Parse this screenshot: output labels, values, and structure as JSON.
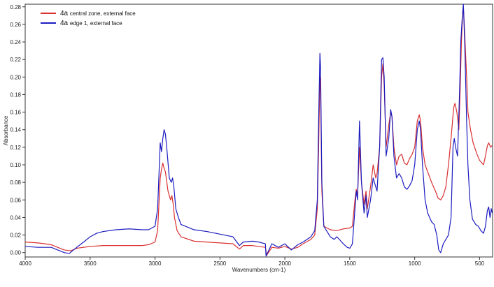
{
  "chart_data": {
    "type": "line",
    "title": "",
    "xlabel": "Wavenumbers (cm-1)",
    "ylabel": "Absorbance",
    "xlim": [
      4000,
      400
    ],
    "ylim": [
      -0.005,
      0.283
    ],
    "x_reversed": true,
    "grid": false,
    "legend_position": "top-left",
    "x_ticks": [
      {
        "value": 4000,
        "label": "4000"
      },
      {
        "value": 3500,
        "label": "3500"
      },
      {
        "value": 3000,
        "label": "3000"
      },
      {
        "value": 2500,
        "label": "2500"
      },
      {
        "value": 2000,
        "label": "2000"
      },
      {
        "value": 1500,
        "label": "1500"
      },
      {
        "value": 1000,
        "label": "1000"
      },
      {
        "value": 500,
        "label": "500"
      }
    ],
    "y_ticks": [
      {
        "value": 0.0,
        "label": "0.00"
      },
      {
        "value": 0.02,
        "label": "0.02"
      },
      {
        "value": 0.04,
        "label": "0.04"
      },
      {
        "value": 0.06,
        "label": "0.06"
      },
      {
        "value": 0.08,
        "label": "0.08"
      },
      {
        "value": 0.1,
        "label": "0.10"
      },
      {
        "value": 0.12,
        "label": "0.12"
      },
      {
        "value": 0.14,
        "label": "0.14"
      },
      {
        "value": 0.16,
        "label": "0.16"
      },
      {
        "value": 0.18,
        "label": "0.18"
      },
      {
        "value": 0.2,
        "label": "0.20"
      },
      {
        "value": 0.22,
        "label": "0.22"
      },
      {
        "value": 0.24,
        "label": "0.24"
      },
      {
        "value": 0.26,
        "label": "0.26"
      },
      {
        "value": 0.28,
        "label": "0.28"
      }
    ],
    "series": [
      {
        "name_prefix": "4a",
        "name": "central zone, external face",
        "color": "#d93030",
        "points": [
          [
            4000,
            0.012
          ],
          [
            3900,
            0.011
          ],
          [
            3800,
            0.009
          ],
          [
            3700,
            0.003
          ],
          [
            3650,
            0.002
          ],
          [
            3600,
            0.005
          ],
          [
            3500,
            0.007
          ],
          [
            3400,
            0.008
          ],
          [
            3300,
            0.008
          ],
          [
            3200,
            0.008
          ],
          [
            3100,
            0.008
          ],
          [
            3050,
            0.009
          ],
          [
            3000,
            0.012
          ],
          [
            2980,
            0.025
          ],
          [
            2960,
            0.085
          ],
          [
            2950,
            0.095
          ],
          [
            2940,
            0.102
          ],
          [
            2930,
            0.096
          ],
          [
            2920,
            0.092
          ],
          [
            2900,
            0.07
          ],
          [
            2880,
            0.06
          ],
          [
            2870,
            0.065
          ],
          [
            2860,
            0.055
          ],
          [
            2850,
            0.04
          ],
          [
            2830,
            0.025
          ],
          [
            2800,
            0.018
          ],
          [
            2700,
            0.013
          ],
          [
            2600,
            0.012
          ],
          [
            2500,
            0.011
          ],
          [
            2400,
            0.01
          ],
          [
            2350,
            0.004
          ],
          [
            2320,
            0.008
          ],
          [
            2250,
            0.008
          ],
          [
            2150,
            0.006
          ],
          [
            2140,
            -0.003
          ],
          [
            2100,
            0.006
          ],
          [
            2050,
            0.005
          ],
          [
            2000,
            0.007
          ],
          [
            1950,
            0.004
          ],
          [
            1900,
            0.006
          ],
          [
            1860,
            0.01
          ],
          [
            1800,
            0.015
          ],
          [
            1770,
            0.02
          ],
          [
            1750,
            0.05
          ],
          [
            1740,
            0.12
          ],
          [
            1730,
            0.2
          ],
          [
            1725,
            0.185
          ],
          [
            1715,
            0.07
          ],
          [
            1700,
            0.03
          ],
          [
            1650,
            0.026
          ],
          [
            1600,
            0.025
          ],
          [
            1550,
            0.027
          ],
          [
            1500,
            0.028
          ],
          [
            1480,
            0.03
          ],
          [
            1460,
            0.06
          ],
          [
            1450,
            0.072
          ],
          [
            1440,
            0.065
          ],
          [
            1425,
            0.12
          ],
          [
            1410,
            0.08
          ],
          [
            1390,
            0.055
          ],
          [
            1375,
            0.07
          ],
          [
            1365,
            0.05
          ],
          [
            1340,
            0.075
          ],
          [
            1320,
            0.1
          ],
          [
            1300,
            0.085
          ],
          [
            1290,
            0.09
          ],
          [
            1270,
            0.12
          ],
          [
            1255,
            0.2
          ],
          [
            1245,
            0.215
          ],
          [
            1235,
            0.19
          ],
          [
            1220,
            0.12
          ],
          [
            1200,
            0.145
          ],
          [
            1185,
            0.16
          ],
          [
            1175,
            0.155
          ],
          [
            1160,
            0.12
          ],
          [
            1140,
            0.1
          ],
          [
            1120,
            0.11
          ],
          [
            1100,
            0.112
          ],
          [
            1080,
            0.102
          ],
          [
            1060,
            0.1
          ],
          [
            1040,
            0.107
          ],
          [
            1020,
            0.112
          ],
          [
            1000,
            0.12
          ],
          [
            980,
            0.15
          ],
          [
            965,
            0.157
          ],
          [
            955,
            0.15
          ],
          [
            940,
            0.12
          ],
          [
            920,
            0.1
          ],
          [
            900,
            0.092
          ],
          [
            870,
            0.08
          ],
          [
            840,
            0.07
          ],
          [
            820,
            0.062
          ],
          [
            800,
            0.06
          ],
          [
            780,
            0.065
          ],
          [
            760,
            0.075
          ],
          [
            740,
            0.1
          ],
          [
            720,
            0.13
          ],
          [
            700,
            0.165
          ],
          [
            690,
            0.17
          ],
          [
            675,
            0.16
          ],
          [
            660,
            0.14
          ],
          [
            650,
            0.185
          ],
          [
            640,
            0.24
          ],
          [
            630,
            0.275
          ],
          [
            625,
            0.28
          ],
          [
            615,
            0.25
          ],
          [
            600,
            0.2
          ],
          [
            590,
            0.16
          ],
          [
            570,
            0.14
          ],
          [
            550,
            0.125
          ],
          [
            520,
            0.112
          ],
          [
            500,
            0.105
          ],
          [
            470,
            0.1
          ],
          [
            455,
            0.11
          ],
          [
            440,
            0.122
          ],
          [
            430,
            0.125
          ],
          [
            415,
            0.12
          ],
          [
            405,
            0.122
          ]
        ]
      },
      {
        "name_prefix": "4a",
        "name": "edge 1, external face",
        "color": "#1c1cc0",
        "points": [
          [
            4000,
            0.007
          ],
          [
            3900,
            0.006
          ],
          [
            3800,
            0.006
          ],
          [
            3700,
            0.0
          ],
          [
            3660,
            -0.001
          ],
          [
            3620,
            0.004
          ],
          [
            3550,
            0.012
          ],
          [
            3500,
            0.018
          ],
          [
            3450,
            0.022
          ],
          [
            3400,
            0.024
          ],
          [
            3300,
            0.026
          ],
          [
            3200,
            0.027
          ],
          [
            3100,
            0.026
          ],
          [
            3050,
            0.026
          ],
          [
            3000,
            0.03
          ],
          [
            2980,
            0.05
          ],
          [
            2960,
            0.125
          ],
          [
            2950,
            0.115
          ],
          [
            2940,
            0.13
          ],
          [
            2930,
            0.14
          ],
          [
            2920,
            0.135
          ],
          [
            2910,
            0.12
          ],
          [
            2890,
            0.085
          ],
          [
            2875,
            0.08
          ],
          [
            2865,
            0.085
          ],
          [
            2855,
            0.075
          ],
          [
            2840,
            0.05
          ],
          [
            2820,
            0.04
          ],
          [
            2800,
            0.032
          ],
          [
            2700,
            0.026
          ],
          [
            2600,
            0.024
          ],
          [
            2500,
            0.021
          ],
          [
            2400,
            0.018
          ],
          [
            2350,
            0.008
          ],
          [
            2320,
            0.012
          ],
          [
            2250,
            0.013
          ],
          [
            2200,
            0.012
          ],
          [
            2150,
            0.01
          ],
          [
            2145,
            -0.004
          ],
          [
            2100,
            0.01
          ],
          [
            2050,
            0.006
          ],
          [
            2000,
            0.01
          ],
          [
            1950,
            0.003
          ],
          [
            1900,
            0.009
          ],
          [
            1860,
            0.012
          ],
          [
            1800,
            0.018
          ],
          [
            1770,
            0.025
          ],
          [
            1750,
            0.06
          ],
          [
            1740,
            0.15
          ],
          [
            1730,
            0.227
          ],
          [
            1725,
            0.21
          ],
          [
            1715,
            0.08
          ],
          [
            1700,
            0.03
          ],
          [
            1650,
            0.018
          ],
          [
            1620,
            0.015
          ],
          [
            1600,
            0.018
          ],
          [
            1580,
            0.015
          ],
          [
            1550,
            0.01
          ],
          [
            1520,
            0.006
          ],
          [
            1500,
            0.005
          ],
          [
            1480,
            0.01
          ],
          [
            1460,
            0.05
          ],
          [
            1450,
            0.07
          ],
          [
            1440,
            0.06
          ],
          [
            1425,
            0.15
          ],
          [
            1410,
            0.08
          ],
          [
            1390,
            0.045
          ],
          [
            1375,
            0.065
          ],
          [
            1365,
            0.04
          ],
          [
            1340,
            0.06
          ],
          [
            1320,
            0.085
          ],
          [
            1300,
            0.075
          ],
          [
            1290,
            0.07
          ],
          [
            1270,
            0.12
          ],
          [
            1255,
            0.22
          ],
          [
            1245,
            0.222
          ],
          [
            1235,
            0.2
          ],
          [
            1220,
            0.11
          ],
          [
            1200,
            0.13
          ],
          [
            1185,
            0.163
          ],
          [
            1175,
            0.155
          ],
          [
            1160,
            0.11
          ],
          [
            1140,
            0.085
          ],
          [
            1120,
            0.09
          ],
          [
            1100,
            0.085
          ],
          [
            1080,
            0.075
          ],
          [
            1060,
            0.072
          ],
          [
            1040,
            0.076
          ],
          [
            1020,
            0.082
          ],
          [
            1000,
            0.1
          ],
          [
            980,
            0.14
          ],
          [
            965,
            0.15
          ],
          [
            955,
            0.14
          ],
          [
            940,
            0.1
          ],
          [
            920,
            0.06
          ],
          [
            900,
            0.045
          ],
          [
            870,
            0.035
          ],
          [
            850,
            0.032
          ],
          [
            830,
            0.02
          ],
          [
            815,
            0.003
          ],
          [
            800,
            0.0
          ],
          [
            780,
            0.01
          ],
          [
            760,
            0.015
          ],
          [
            740,
            0.02
          ],
          [
            720,
            0.04
          ],
          [
            705,
            0.12
          ],
          [
            695,
            0.13
          ],
          [
            685,
            0.12
          ],
          [
            670,
            0.11
          ],
          [
            655,
            0.18
          ],
          [
            645,
            0.24
          ],
          [
            635,
            0.265
          ],
          [
            625,
            0.283
          ],
          [
            615,
            0.24
          ],
          [
            600,
            0.15
          ],
          [
            590,
            0.1
          ],
          [
            575,
            0.06
          ],
          [
            555,
            0.038
          ],
          [
            530,
            0.032
          ],
          [
            510,
            0.03
          ],
          [
            490,
            0.025
          ],
          [
            470,
            0.022
          ],
          [
            455,
            0.03
          ],
          [
            440,
            0.048
          ],
          [
            430,
            0.052
          ],
          [
            420,
            0.04
          ],
          [
            410,
            0.05
          ],
          [
            403,
            0.045
          ]
        ]
      }
    ]
  }
}
